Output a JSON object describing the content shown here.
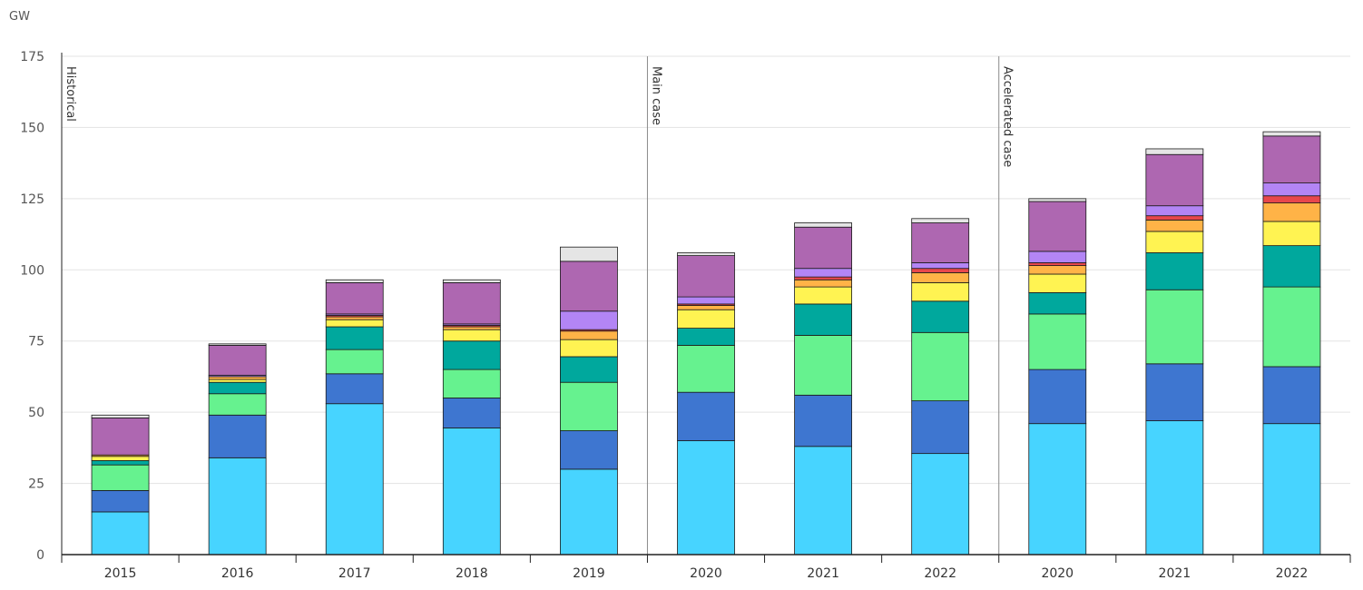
{
  "chart_data": {
    "type": "bar",
    "stacked": true,
    "ylabel": "GW",
    "ylim": [
      0,
      175
    ],
    "yticks": [
      0,
      25,
      50,
      75,
      100,
      125,
      150,
      175
    ],
    "grid": true,
    "legend": "none",
    "categories": [
      "2015",
      "2016",
      "2017",
      "2018",
      "2019",
      "2020",
      "2021",
      "2022",
      "2020",
      "2021",
      "2022"
    ],
    "sections": [
      {
        "label": "Historical",
        "start": 0
      },
      {
        "label": "Main case",
        "start": 5
      },
      {
        "label": "Accelerated case",
        "start": 8
      }
    ],
    "series": [
      {
        "color": "#47d4ff",
        "values": [
          15,
          34,
          53,
          44.5,
          30,
          40,
          38,
          35.5,
          46,
          47,
          46
        ]
      },
      {
        "color": "#3e76d0",
        "values": [
          7.5,
          15,
          10.5,
          10.5,
          13.5,
          17,
          18,
          18.5,
          19,
          20,
          20
        ]
      },
      {
        "color": "#66f28f",
        "values": [
          9,
          7.5,
          8.5,
          10,
          17,
          16.5,
          21,
          24,
          19.5,
          26,
          28
        ]
      },
      {
        "color": "#00a89d",
        "values": [
          1.5,
          4,
          8,
          10,
          9,
          6,
          11,
          11,
          7.5,
          13,
          14.5
        ]
      },
      {
        "color": "#fff352",
        "values": [
          1.5,
          1,
          2.5,
          4,
          6,
          6.5,
          6,
          6.5,
          6.5,
          7.5,
          8.5
        ]
      },
      {
        "color": "#ffb347",
        "values": [
          0.5,
          1,
          1,
          1,
          3,
          1.5,
          2.5,
          3.5,
          3,
          4,
          6.5
        ]
      },
      {
        "color": "#e8474c",
        "values": [
          0,
          0,
          0.5,
          0.5,
          0.5,
          0.5,
          1,
          1.5,
          1,
          1.5,
          2.5
        ]
      },
      {
        "color": "#b385f5",
        "values": [
          0,
          0.5,
          0.5,
          0.5,
          6.5,
          2.5,
          3,
          2,
          4,
          3.5,
          4.5
        ]
      },
      {
        "color": "#ae67b1",
        "values": [
          13,
          10.5,
          11,
          14.5,
          17.5,
          14.5,
          14.5,
          14,
          17.5,
          18,
          16.5
        ]
      },
      {
        "color": "#e5e5e5",
        "values": [
          1,
          0.5,
          1,
          1,
          5,
          1,
          1.5,
          1.5,
          1,
          2,
          1.5
        ]
      }
    ]
  }
}
